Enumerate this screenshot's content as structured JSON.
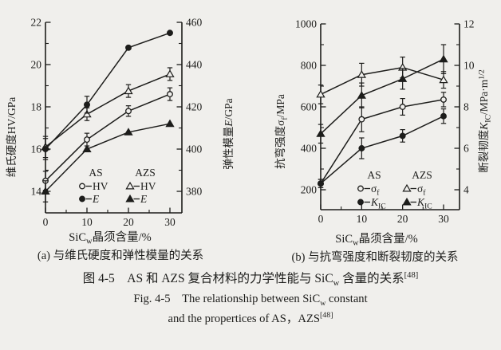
{
  "colors": {
    "ink": "#1d1d1b",
    "paper": "#f0efec"
  },
  "figure": {
    "caption_cn": "图 4-5　AS 和 AZS 复合材料的力学性能与 SiC~w~ 含量的关系^[48]^",
    "caption_en_line1": "Fig. 4-5　The relationship between SiC~w~ constant",
    "caption_en_line2": "and the propertices of AS，AZS^[48]^"
  },
  "chart_data": [
    {
      "id": "a",
      "type": "line",
      "title": "(a) 与维氏硬度和弹性模量的关系",
      "xlabel": "SiC~w~晶须含量/%",
      "x_ticks": [
        0,
        10,
        20,
        30
      ],
      "x_minor_ticks": [
        5,
        15,
        25
      ],
      "xlim": [
        0,
        33
      ],
      "axes": {
        "left": {
          "label": "维氏硬度HV/GPa",
          "ticks": [
            14,
            16,
            18,
            20,
            22
          ],
          "minor_ticks": [
            15,
            17,
            19,
            21
          ],
          "lim": [
            13.2,
            22
          ]
        },
        "right": {
          "label": "弹性模量*E*/GPa",
          "ticks": [
            380,
            400,
            420,
            440,
            460
          ],
          "minor_ticks": [
            390,
            410,
            430,
            450
          ],
          "lim": [
            372,
            460
          ]
        }
      },
      "series": [
        {
          "name": "AS HV",
          "axis": "left",
          "marker": "circle-open",
          "x": [
            0,
            10,
            20,
            30
          ],
          "y": [
            14.5,
            16.45,
            17.8,
            18.6
          ],
          "yerr": [
            0.45,
            0.3,
            0.25,
            0.3
          ]
        },
        {
          "name": "AZS HV",
          "axis": "left",
          "marker": "triangle-open",
          "x": [
            0,
            10,
            20,
            30
          ],
          "y": [
            16.1,
            17.65,
            18.75,
            19.55
          ],
          "yerr": [
            0.5,
            0.3,
            0.3,
            0.3
          ]
        },
        {
          "name": "AS E",
          "axis": "right",
          "marker": "circle-filled",
          "x": [
            0,
            10,
            20,
            30
          ],
          "y": [
            400,
            421,
            448,
            455
          ],
          "yerr": [
            5,
            4,
            0,
            0
          ]
        },
        {
          "name": "AZS E",
          "axis": "right",
          "marker": "triangle-filled",
          "x": [
            0,
            10,
            20,
            30
          ],
          "y": [
            380,
            400,
            408,
            412
          ],
          "yerr": [
            5,
            0,
            0,
            0
          ]
        }
      ],
      "legend": {
        "columns": [
          {
            "header": "AS",
            "items": [
              {
                "marker": "circle-open",
                "label": "HV"
              },
              {
                "marker": "circle-filled",
                "label": "*E*"
              }
            ]
          },
          {
            "header": "AZS",
            "items": [
              {
                "marker": "triangle-open",
                "label": "HV"
              },
              {
                "marker": "triangle-filled",
                "label": "*E*"
              }
            ]
          }
        ]
      }
    },
    {
      "id": "b",
      "type": "line",
      "title": "(b) 与抗弯强度和断裂韧度的关系",
      "xlabel": "SiC~w~晶须含量/%",
      "x_ticks": [
        0,
        10,
        20,
        30
      ],
      "x_minor_ticks": [
        5,
        15,
        25
      ],
      "xlim": [
        0,
        33
      ],
      "axes": {
        "left": {
          "label": "抗弯强度σ~f~/MPa",
          "ticks": [
            200,
            400,
            600,
            800,
            1000
          ],
          "minor_ticks": [
            300,
            500,
            700,
            900
          ],
          "lim": [
            105,
            1000
          ]
        },
        "right": {
          "label": "断裂韧度*K*~IC~/MPa·m^1/2^",
          "ticks": [
            4,
            6,
            8,
            10,
            12
          ],
          "minor_ticks": [
            5,
            7,
            9,
            11
          ],
          "lim": [
            3.0,
            12
          ]
        }
      },
      "series": [
        {
          "name": "AS sigma-f",
          "axis": "left",
          "marker": "circle-open",
          "x": [
            0,
            10,
            20,
            30
          ],
          "y": [
            230,
            540,
            600,
            635
          ],
          "yerr": [
            20,
            60,
            40,
            35
          ]
        },
        {
          "name": "AZS sigma-f",
          "axis": "left",
          "marker": "triangle-open",
          "x": [
            0,
            10,
            20,
            30
          ],
          "y": [
            660,
            755,
            790,
            730
          ],
          "yerr": [
            45,
            55,
            50,
            40
          ]
        },
        {
          "name": "AS K-IC",
          "axis": "right",
          "marker": "circle-filled",
          "x": [
            0,
            10,
            20,
            30
          ],
          "y": [
            4.3,
            6.0,
            6.6,
            7.55
          ],
          "yerr": [
            0.2,
            0.5,
            0.3,
            0.35
          ]
        },
        {
          "name": "AZS K-IC",
          "axis": "right",
          "marker": "triangle-filled",
          "x": [
            0,
            10,
            20,
            30
          ],
          "y": [
            6.7,
            8.55,
            9.35,
            10.3
          ],
          "yerr": [
            0.45,
            0.6,
            0.5,
            0.7
          ]
        }
      ],
      "legend": {
        "columns": [
          {
            "header": "AS",
            "items": [
              {
                "marker": "circle-open",
                "label": "σ~f~"
              },
              {
                "marker": "circle-filled",
                "label": "*K*~IC~"
              }
            ]
          },
          {
            "header": "AZS",
            "items": [
              {
                "marker": "triangle-open",
                "label": "σ~f~"
              },
              {
                "marker": "triangle-filled",
                "label": "*K*~IC~"
              }
            ]
          }
        ]
      }
    }
  ]
}
